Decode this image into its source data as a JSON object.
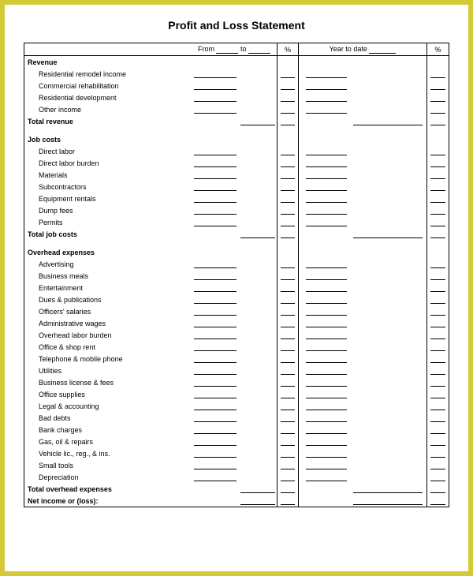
{
  "title": "Profit and Loss Statement",
  "header": {
    "from": "From",
    "to": "to",
    "pct": "%",
    "ytd": "Year to date",
    "pct2": "%"
  },
  "sections": [
    {
      "label": "Revenue",
      "items": [
        "Residential remodel income",
        "Commercial rehabilitation",
        "Residential development",
        "Other income"
      ],
      "total": "Total revenue",
      "totalOffset": true
    },
    {
      "label": "Job costs",
      "items": [
        "Direct labor",
        "Direct labor burden",
        "Materials",
        "Subcontractors",
        "Equipment rentals",
        "Dump fees",
        "Permits"
      ],
      "total": "Total job costs",
      "totalOffset": true
    },
    {
      "label": "Overhead expenses",
      "items": [
        "Advertising",
        "Business meals",
        "Entertainment",
        "Dues & publications",
        "Officers' salaries",
        "Administrative wages",
        "Overhead labor burden",
        "Office & shop rent",
        "Telephone & mobile phone",
        "Utilities",
        "Business license & fees",
        "Office supplies",
        "Legal & accounting",
        "Bad debts",
        "Bank charges",
        "Gas, oil & repairs",
        "Vehicle lic., reg., & ins.",
        "Small tools",
        "Depreciation"
      ],
      "total": "Total overhead expenses",
      "totalOffset": false
    }
  ],
  "netLabel": "Net income or (loss):",
  "style": {
    "border_color": "#d4c938",
    "line_color": "#000000",
    "background": "#ffffff",
    "title_fontsize": 14,
    "body_fontsize": 9
  }
}
